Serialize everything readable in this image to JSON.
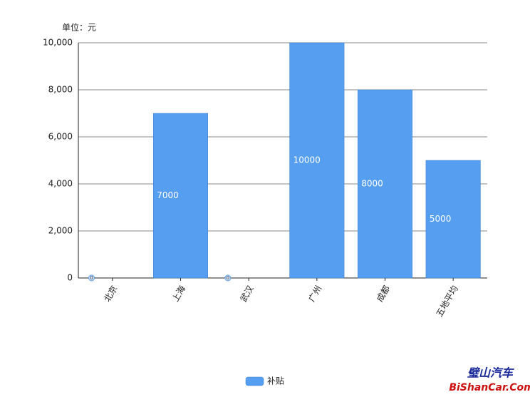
{
  "chart_data": {
    "type": "bar",
    "unit_label": "单位：元",
    "categories": [
      "北京",
      "上海",
      "武汉",
      "广州",
      "成都",
      "五地平均"
    ],
    "series": [
      {
        "name": "补贴",
        "color": "#559ef0",
        "values": [
          0,
          7000,
          0,
          10000,
          8000,
          5000
        ]
      }
    ],
    "ylim": [
      0,
      10000
    ],
    "yticks": [
      0,
      {
        "value": 2000,
        "label": "2,000"
      },
      {
        "value": 4000,
        "label": "4,000"
      },
      {
        "value": 6000,
        "label": "6,000"
      },
      {
        "value": 8000,
        "label": "8,000"
      },
      {
        "value": 10000,
        "label": "10,000"
      }
    ],
    "grid": true,
    "legend": "bottom",
    "watermark": {
      "title": "璧山汽车",
      "url": "BiShanCar.Com"
    }
  }
}
